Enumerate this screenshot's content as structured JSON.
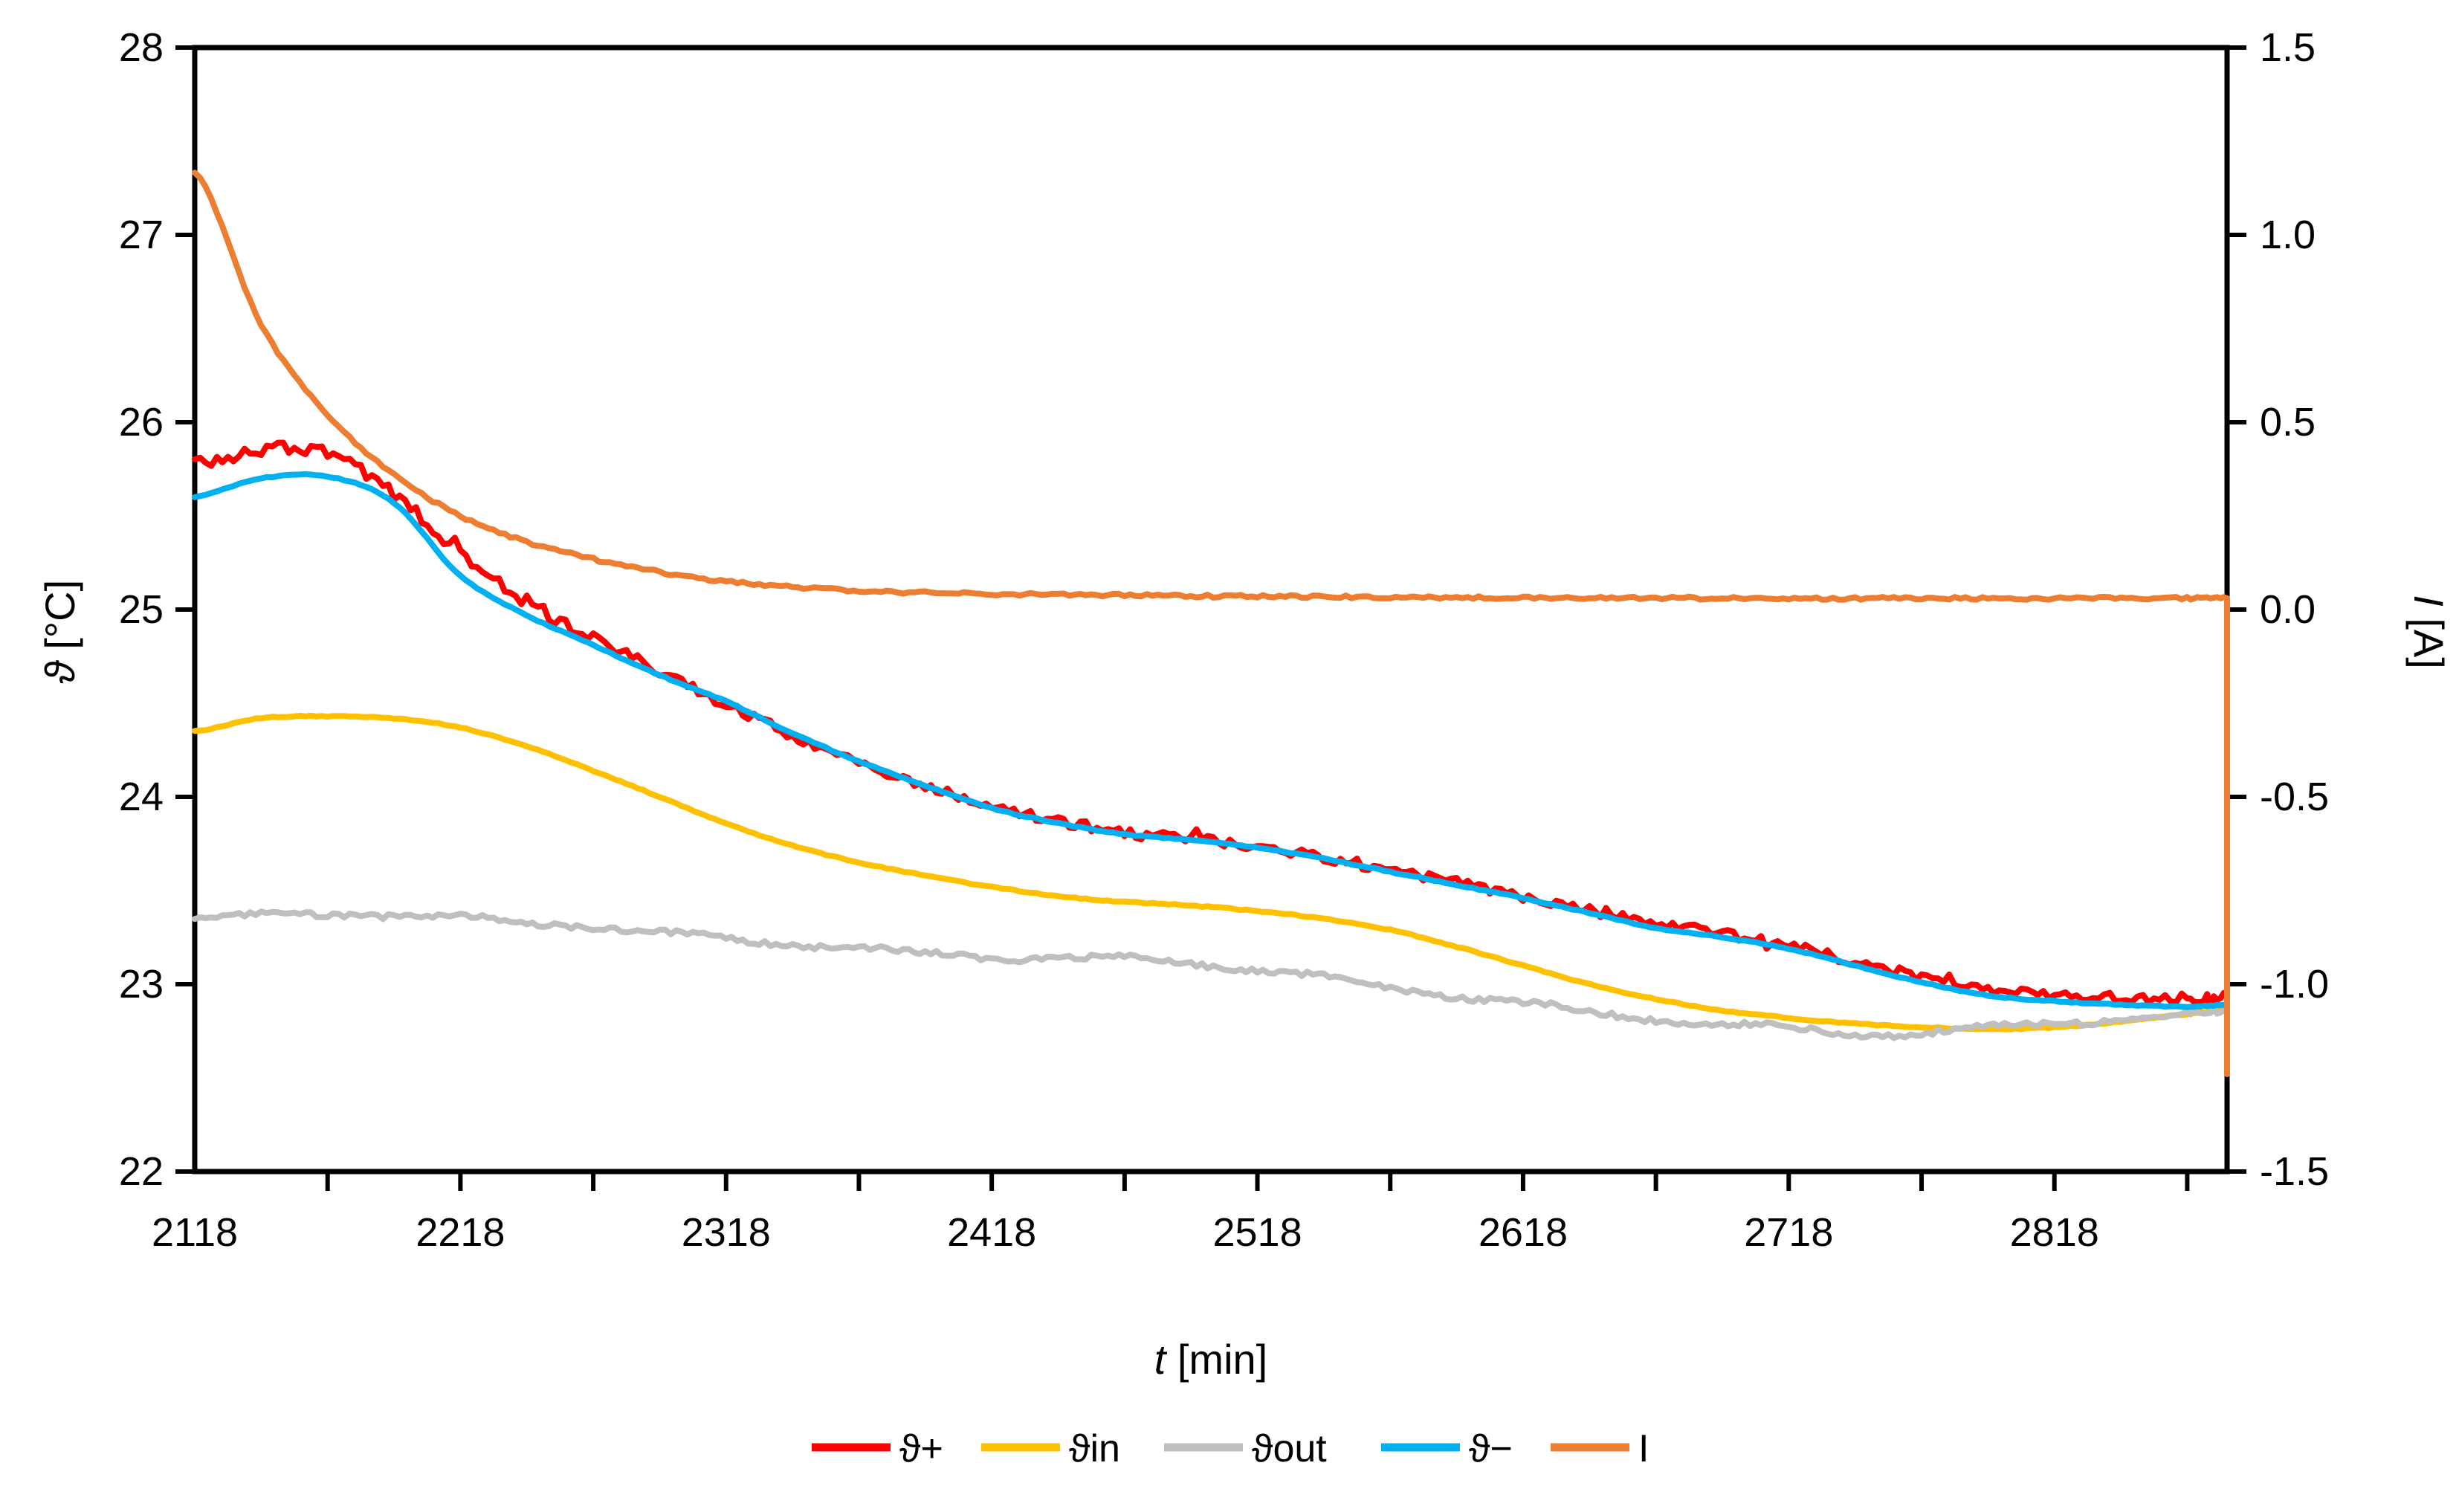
{
  "page": {
    "background": "#ffffff"
  },
  "chart_data": {
    "type": "line",
    "title": "",
    "x": {
      "label_italic": "t",
      "label_unit": "[min]",
      "min": 2118,
      "max": 2883,
      "tick_labels": [
        "2118",
        "2218",
        "2318",
        "2418",
        "2518",
        "2618",
        "2718",
        "2818"
      ],
      "tick_values": [
        2118,
        2218,
        2318,
        2418,
        2518,
        2618,
        2718,
        2818
      ],
      "minor_tick_step": 50,
      "minor_tick_start": 2168,
      "minor_tick_end": 2868
    },
    "y_left": {
      "label_italic": "ϑ",
      "label_unit": "[°C]",
      "min": 22,
      "max": 28,
      "tick_labels": [
        "28",
        "27",
        "26",
        "25",
        "24",
        "23",
        "22"
      ],
      "tick_values": [
        28,
        27,
        26,
        25,
        24,
        23,
        22
      ]
    },
    "y_right": {
      "label_italic": "I",
      "label_unit": "[A]",
      "min": -1.5,
      "max": 1.5,
      "tick_labels": [
        "1.5",
        "1.0",
        "0.5",
        "0.0",
        "-0.5",
        "-1.0",
        "-1.5"
      ],
      "tick_values": [
        1.5,
        1.0,
        0.5,
        0.0,
        -0.5,
        -1.0,
        -1.5
      ]
    },
    "grid": false,
    "legend_position": "bottom",
    "sample_t": [
      2118,
      2143,
      2168,
      2193,
      2218,
      2243,
      2268,
      2293,
      2318,
      2343,
      2368,
      2393,
      2418,
      2443,
      2468,
      2493,
      2518,
      2543,
      2568,
      2593,
      2618,
      2643,
      2668,
      2693,
      2718,
      2743,
      2768,
      2793,
      2818,
      2843,
      2868,
      2883
    ],
    "series": [
      {
        "name": "ϑ+",
        "axis": "left",
        "color": "#FF0000",
        "noise": 0.028,
        "wobble": false,
        "values": [
          25.78,
          25.85,
          25.84,
          25.62,
          25.3,
          25.04,
          24.85,
          24.67,
          24.5,
          24.33,
          24.18,
          24.06,
          23.95,
          23.87,
          23.81,
          23.78,
          23.74,
          23.68,
          23.61,
          23.54,
          23.47,
          23.39,
          23.32,
          23.27,
          23.21,
          23.12,
          23.04,
          22.97,
          22.94,
          22.93,
          22.92,
          22.93
        ]
      },
      {
        "name": "ϑin",
        "axis": "left",
        "color": "#FFC000",
        "noise": 0.003,
        "wobble": false,
        "values": [
          24.35,
          24.42,
          24.43,
          24.42,
          24.37,
          24.27,
          24.14,
          24.0,
          23.86,
          23.74,
          23.65,
          23.58,
          23.52,
          23.47,
          23.44,
          23.42,
          23.39,
          23.35,
          23.29,
          23.2,
          23.1,
          23.0,
          22.92,
          22.86,
          22.82,
          22.79,
          22.77,
          22.76,
          22.77,
          22.8,
          22.84,
          22.86
        ]
      },
      {
        "name": "ϑout",
        "axis": "left",
        "color": "#BFBFBF",
        "noise": 0.014,
        "wobble": true,
        "values": [
          23.35,
          23.36,
          23.37,
          23.36,
          23.35,
          23.33,
          23.31,
          23.28,
          23.25,
          23.22,
          23.19,
          23.16,
          23.14,
          23.13,
          23.13,
          23.11,
          23.08,
          23.04,
          22.99,
          22.94,
          22.9,
          22.85,
          22.81,
          22.78,
          22.76,
          22.73,
          22.74,
          22.78,
          22.8,
          22.82,
          22.84,
          22.85
        ]
      },
      {
        "name": "ϑ−",
        "axis": "left",
        "color": "#00B0F0",
        "noise": 0.003,
        "wobble": false,
        "values": [
          25.6,
          25.7,
          25.71,
          25.57,
          25.18,
          24.97,
          24.81,
          24.65,
          24.51,
          24.34,
          24.19,
          24.06,
          23.94,
          23.86,
          23.8,
          23.77,
          23.73,
          23.67,
          23.6,
          23.53,
          23.46,
          23.38,
          23.3,
          23.25,
          23.19,
          23.1,
          23.01,
          22.94,
          22.91,
          22.89,
          22.88,
          22.89
        ]
      },
      {
        "name": "I",
        "axis": "right",
        "color": "#ED7D31",
        "noise": 0.004,
        "wobble": false,
        "end_drop": -1.24,
        "values": [
          1.17,
          0.76,
          0.52,
          0.36,
          0.25,
          0.18,
          0.135,
          0.1,
          0.075,
          0.06,
          0.05,
          0.045,
          0.042,
          0.04,
          0.038,
          0.036,
          0.035,
          0.034,
          0.033,
          0.032,
          0.032,
          0.031,
          0.031,
          0.03,
          0.03,
          0.03,
          0.03,
          0.03,
          0.03,
          0.03,
          0.03,
          0.03
        ]
      }
    ],
    "legend": [
      {
        "label": "ϑ+",
        "color": "#FF0000"
      },
      {
        "label": "ϑin",
        "color": "#FFC000"
      },
      {
        "label": "ϑout",
        "color": "#BFBFBF"
      },
      {
        "label": "ϑ−",
        "color": "#00B0F0"
      },
      {
        "label": "I",
        "color": "#ED7D31"
      }
    ],
    "axis_color": "#000000"
  }
}
